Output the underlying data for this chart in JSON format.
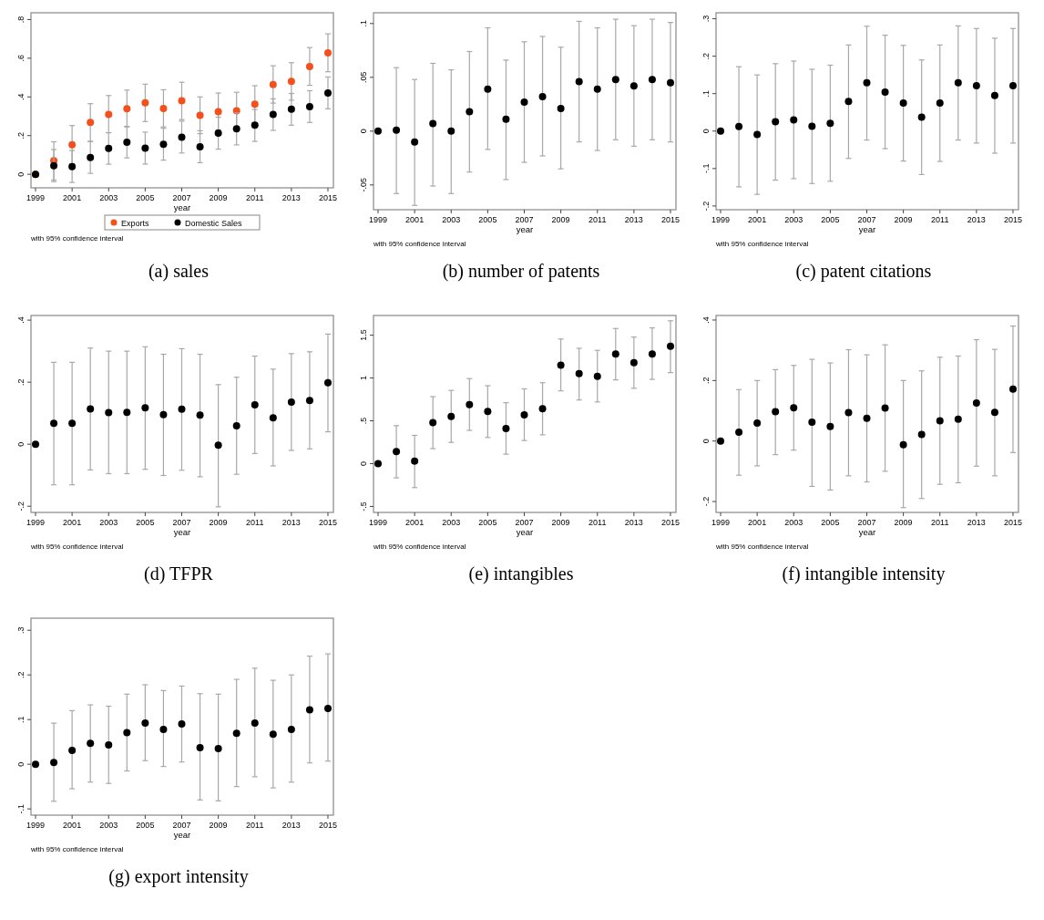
{
  "chart_data": [
    {
      "type": "scatter",
      "title": "(a) sales",
      "xlabel": "year",
      "annotations": [
        "with 95% confidence interval"
      ],
      "x": [
        1999,
        2000,
        2001,
        2002,
        2003,
        2004,
        2005,
        2006,
        2007,
        2008,
        2009,
        2010,
        2011,
        2012,
        2013,
        2014,
        2015
      ],
      "xlim": [
        1998.75,
        2015.3
      ],
      "xticks": [
        1999,
        2001,
        2003,
        2005,
        2007,
        2009,
        2011,
        2013,
        2015
      ],
      "ylim": [
        -0.07,
        0.835
      ],
      "yticks": [
        {
          "value": 0,
          "label": "0"
        },
        {
          "value": 0.2,
          "label": ".2"
        },
        {
          "value": 0.4,
          "label": ".4"
        },
        {
          "value": 0.6,
          "label": ".6"
        },
        {
          "value": 0.8,
          "label": ".8"
        }
      ],
      "marker": "circle",
      "legend": "bottom",
      "series": [
        {
          "name": "Exports",
          "color": "#f4501e",
          "values": [
            0,
            0.07,
            0.153,
            0.268,
            0.31,
            0.339,
            0.369,
            0.34,
            0.38,
            0.305,
            0.324,
            0.328,
            0.362,
            0.464,
            0.48,
            0.557,
            0.628
          ],
          "errors": [
            null,
            [
              -0.03,
              0.168
            ],
            [
              0.055,
              0.252
            ],
            [
              0.17,
              0.365
            ],
            [
              0.215,
              0.407
            ],
            [
              0.245,
              0.435
            ],
            [
              0.273,
              0.466
            ],
            [
              0.245,
              0.437
            ],
            [
              0.283,
              0.476
            ],
            [
              0.21,
              0.4
            ],
            [
              0.23,
              0.42
            ],
            [
              0.232,
              0.424
            ],
            [
              0.265,
              0.458
            ],
            [
              0.368,
              0.561
            ],
            [
              0.383,
              0.577
            ],
            [
              0.46,
              0.655
            ],
            [
              0.53,
              0.726
            ]
          ]
        },
        {
          "name": "Domestic Sales",
          "color": "#000000",
          "values": [
            0,
            0.044,
            0.04,
            0.087,
            0.134,
            0.166,
            0.135,
            0.155,
            0.192,
            0.142,
            0.213,
            0.235,
            0.254,
            0.309,
            0.336,
            0.35,
            0.42
          ],
          "errors": [
            null,
            [
              -0.038,
              0.128
            ],
            [
              -0.042,
              0.123
            ],
            [
              0.005,
              0.17
            ],
            [
              0.052,
              0.215
            ],
            [
              0.085,
              0.248
            ],
            [
              0.053,
              0.218
            ],
            [
              0.073,
              0.238
            ],
            [
              0.11,
              0.275
            ],
            [
              0.06,
              0.225
            ],
            [
              0.13,
              0.295
            ],
            [
              0.152,
              0.317
            ],
            [
              0.17,
              0.335
            ],
            [
              0.227,
              0.39
            ],
            [
              0.254,
              0.418
            ],
            [
              0.268,
              0.432
            ],
            [
              0.338,
              0.503
            ]
          ]
        }
      ]
    },
    {
      "type": "scatter",
      "title": "(b) number of patents",
      "xlabel": "year",
      "annotations": [
        "with 95% confidence interval"
      ],
      "x": [
        1999,
        2000,
        2001,
        2002,
        2003,
        2004,
        2005,
        2006,
        2007,
        2008,
        2009,
        2010,
        2011,
        2012,
        2013,
        2014,
        2015
      ],
      "xlim": [
        1998.75,
        2015.3
      ],
      "xticks": [
        1999,
        2001,
        2003,
        2005,
        2007,
        2009,
        2011,
        2013,
        2015
      ],
      "ylim": [
        -0.073,
        0.11
      ],
      "yticks": [
        {
          "value": -0.05,
          "label": "-.05"
        },
        {
          "value": 0,
          "label": "0"
        },
        {
          "value": 0.05,
          "label": ".05"
        },
        {
          "value": 0.1,
          "label": ".1"
        }
      ],
      "marker": "circle",
      "series": [
        {
          "color": "#000000",
          "values": [
            0,
            0.001,
            -0.01,
            0.007,
            0,
            0.018,
            0.039,
            0.011,
            0.027,
            0.032,
            0.021,
            0.046,
            0.039,
            0.048,
            0.042,
            0.048,
            0.045
          ],
          "errors": [
            null,
            [
              -0.058,
              0.059
            ],
            [
              -0.069,
              0.048
            ],
            [
              -0.051,
              0.063
            ],
            [
              -0.058,
              0.057
            ],
            [
              -0.038,
              0.074
            ],
            [
              -0.017,
              0.096
            ],
            [
              -0.045,
              0.066
            ],
            [
              -0.029,
              0.083
            ],
            [
              -0.023,
              0.088
            ],
            [
              -0.035,
              0.078
            ],
            [
              -0.01,
              0.102
            ],
            [
              -0.018,
              0.096
            ],
            [
              -0.008,
              0.104
            ],
            [
              -0.014,
              0.098
            ],
            [
              -0.008,
              0.104
            ],
            [
              -0.01,
              0.101
            ]
          ]
        }
      ]
    },
    {
      "type": "scatter",
      "title": "(c) patent citations",
      "xlabel": "year",
      "annotations": [
        "with 95% confidence interval"
      ],
      "x": [
        1999,
        2000,
        2001,
        2002,
        2003,
        2004,
        2005,
        2006,
        2007,
        2008,
        2009,
        2010,
        2011,
        2012,
        2013,
        2014,
        2015
      ],
      "xlim": [
        1998.75,
        2015.3
      ],
      "xticks": [
        1999,
        2001,
        2003,
        2005,
        2007,
        2009,
        2011,
        2013,
        2015
      ],
      "ylim": [
        -0.21,
        0.316
      ],
      "yticks": [
        {
          "value": -0.2,
          "label": "-.2"
        },
        {
          "value": -0.1,
          "label": "-.1"
        },
        {
          "value": 0,
          "label": "0"
        },
        {
          "value": 0.1,
          "label": ".1"
        },
        {
          "value": 0.2,
          "label": ".2"
        },
        {
          "value": 0.3,
          "label": ".3"
        }
      ],
      "marker": "circle",
      "series": [
        {
          "color": "#000000",
          "values": [
            0,
            0.012,
            -0.009,
            0.025,
            0.03,
            0.013,
            0.021,
            0.079,
            0.129,
            0.104,
            0.075,
            0.037,
            0.075,
            0.129,
            0.121,
            0.095,
            0.121
          ],
          "errors": [
            null,
            [
              -0.149,
              0.172
            ],
            [
              -0.169,
              0.15
            ],
            [
              -0.131,
              0.18
            ],
            [
              -0.127,
              0.187
            ],
            [
              -0.14,
              0.165
            ],
            [
              -0.134,
              0.176
            ],
            [
              -0.073,
              0.23
            ],
            [
              -0.024,
              0.28
            ],
            [
              -0.047,
              0.256
            ],
            [
              -0.08,
              0.229
            ],
            [
              -0.116,
              0.19
            ],
            [
              -0.081,
              0.23
            ],
            [
              -0.024,
              0.281
            ],
            [
              -0.032,
              0.274
            ],
            [
              -0.059,
              0.248
            ],
            [
              -0.032,
              0.274
            ]
          ]
        }
      ]
    },
    {
      "type": "scatter",
      "title": "(d) TFPR",
      "xlabel": "year",
      "annotations": [
        "with 95% confidence interval"
      ],
      "x": [
        1999,
        2000,
        2001,
        2002,
        2003,
        2004,
        2005,
        2006,
        2007,
        2008,
        2009,
        2010,
        2011,
        2012,
        2013,
        2014,
        2015
      ],
      "xlim": [
        1998.75,
        2015.3
      ],
      "xticks": [
        1999,
        2001,
        2003,
        2005,
        2007,
        2009,
        2011,
        2013,
        2015
      ],
      "ylim": [
        -0.22,
        0.415
      ],
      "yticks": [
        {
          "value": -0.2,
          "label": "-.2"
        },
        {
          "value": 0,
          "label": "0"
        },
        {
          "value": 0.2,
          "label": ".2"
        },
        {
          "value": 0.4,
          "label": ".4"
        }
      ],
      "marker": "circle",
      "series": [
        {
          "color": "#000000",
          "values": [
            0,
            0.067,
            0.067,
            0.114,
            0.102,
            0.103,
            0.117,
            0.095,
            0.113,
            0.094,
            -0.003,
            0.059,
            0.127,
            0.085,
            0.136,
            0.141,
            0.198
          ],
          "errors": [
            null,
            [
              -0.131,
              0.264
            ],
            [
              -0.131,
              0.264
            ],
            [
              -0.083,
              0.31
            ],
            [
              -0.095,
              0.3
            ],
            [
              -0.095,
              0.3
            ],
            [
              -0.081,
              0.314
            ],
            [
              -0.101,
              0.29
            ],
            [
              -0.084,
              0.308
            ],
            [
              -0.105,
              0.29
            ],
            [
              -0.202,
              0.192
            ],
            [
              -0.097,
              0.216
            ],
            [
              -0.03,
              0.284
            ],
            [
              -0.07,
              0.242
            ],
            [
              -0.02,
              0.292
            ],
            [
              -0.015,
              0.298
            ],
            [
              0.04,
              0.355
            ]
          ]
        }
      ]
    },
    {
      "type": "scatter",
      "title": "(e) intangibles",
      "xlabel": "year",
      "annotations": [
        "with 95% confidence interval"
      ],
      "x": [
        1999,
        2000,
        2001,
        2002,
        2003,
        2004,
        2005,
        2006,
        2007,
        2008,
        2009,
        2010,
        2011,
        2012,
        2013,
        2014,
        2015
      ],
      "xlim": [
        1998.75,
        2015.3
      ],
      "xticks": [
        1999,
        2001,
        2003,
        2005,
        2007,
        2009,
        2011,
        2013,
        2015
      ],
      "ylim": [
        -0.57,
        1.73
      ],
      "yticks": [
        {
          "value": -0.5,
          "label": "-.5"
        },
        {
          "value": 0,
          "label": "0"
        },
        {
          "value": 0.5,
          "label": ".5"
        },
        {
          "value": 1,
          "label": "1"
        },
        {
          "value": 1.5,
          "label": "1.5"
        }
      ],
      "marker": "circle",
      "series": [
        {
          "color": "#000000",
          "values": [
            0,
            0.14,
            0.03,
            0.48,
            0.55,
            0.69,
            0.61,
            0.41,
            0.57,
            0.64,
            1.15,
            1.05,
            1.02,
            1.28,
            1.18,
            1.28,
            1.37
          ],
          "errors": [
            null,
            [
              -0.166,
              0.443
            ],
            [
              -0.28,
              0.33
            ],
            [
              0.175,
              0.782
            ],
            [
              0.248,
              0.855
            ],
            [
              0.388,
              0.993
            ],
            [
              0.305,
              0.91
            ],
            [
              0.11,
              0.712
            ],
            [
              0.27,
              0.873
            ],
            [
              0.336,
              0.945
            ],
            [
              0.85,
              1.455
            ],
            [
              0.743,
              1.347
            ],
            [
              0.72,
              1.323
            ],
            [
              0.978,
              1.578
            ],
            [
              0.88,
              1.478
            ],
            [
              0.984,
              1.585
            ],
            [
              1.063,
              1.668
            ]
          ]
        }
      ]
    },
    {
      "type": "scatter",
      "title": "(f) intangible intensity",
      "xlabel": "year",
      "annotations": [
        "with 95% confidence interval"
      ],
      "x": [
        1999,
        2000,
        2001,
        2002,
        2003,
        2004,
        2005,
        2006,
        2007,
        2008,
        2009,
        2010,
        2011,
        2012,
        2013,
        2014,
        2015
      ],
      "xlim": [
        1998.75,
        2015.3
      ],
      "xticks": [
        1999,
        2001,
        2003,
        2005,
        2007,
        2009,
        2011,
        2013,
        2015
      ],
      "ylim": [
        -0.236,
        0.415
      ],
      "yticks": [
        {
          "value": -0.2,
          "label": "-.2"
        },
        {
          "value": 0,
          "label": "0"
        },
        {
          "value": 0.2,
          "label": ".2"
        },
        {
          "value": 0.4,
          "label": ".4"
        }
      ],
      "marker": "circle",
      "series": [
        {
          "color": "#000000",
          "values": [
            0,
            0.029,
            0.059,
            0.097,
            0.11,
            0.062,
            0.048,
            0.094,
            0.075,
            0.109,
            -0.012,
            0.022,
            0.067,
            0.072,
            0.126,
            0.095,
            0.172
          ],
          "errors": [
            null,
            [
              -0.113,
              0.17
            ],
            [
              -0.082,
              0.2
            ],
            [
              -0.045,
              0.236
            ],
            [
              -0.03,
              0.25
            ],
            [
              -0.15,
              0.27
            ],
            [
              -0.162,
              0.258
            ],
            [
              -0.115,
              0.302
            ],
            [
              -0.135,
              0.285
            ],
            [
              -0.1,
              0.318
            ],
            [
              -0.22,
              0.2
            ],
            [
              -0.19,
              0.232
            ],
            [
              -0.143,
              0.277
            ],
            [
              -0.138,
              0.281
            ],
            [
              -0.083,
              0.335
            ],
            [
              -0.115,
              0.303
            ],
            [
              -0.038,
              0.38
            ]
          ]
        }
      ]
    },
    {
      "type": "scatter",
      "title": "(g) export intensity",
      "xlabel": "year",
      "annotations": [
        "with 95% confidence interval"
      ],
      "x": [
        1999,
        2000,
        2001,
        2002,
        2003,
        2004,
        2005,
        2006,
        2007,
        2008,
        2009,
        2010,
        2011,
        2012,
        2013,
        2014,
        2015
      ],
      "xlim": [
        1998.75,
        2015.3
      ],
      "xticks": [
        1999,
        2001,
        2003,
        2005,
        2007,
        2009,
        2011,
        2013,
        2015
      ],
      "ylim": [
        -0.114,
        0.327
      ],
      "yticks": [
        {
          "value": -0.1,
          "label": "-.1"
        },
        {
          "value": 0,
          "label": "0"
        },
        {
          "value": 0.1,
          "label": ".1"
        },
        {
          "value": 0.2,
          "label": ".2"
        },
        {
          "value": 0.3,
          "label": ".3"
        }
      ],
      "marker": "circle",
      "series": [
        {
          "color": "#000000",
          "values": [
            0,
            0.004,
            0.031,
            0.047,
            0.043,
            0.071,
            0.092,
            0.078,
            0.09,
            0.037,
            0.035,
            0.069,
            0.092,
            0.067,
            0.078,
            0.122,
            0.125
          ],
          "errors": [
            null,
            [
              -0.083,
              0.092
            ],
            [
              -0.055,
              0.12
            ],
            [
              -0.04,
              0.133
            ],
            [
              -0.043,
              0.13
            ],
            [
              -0.015,
              0.157
            ],
            [
              0.008,
              0.178
            ],
            [
              -0.005,
              0.165
            ],
            [
              0.005,
              0.175
            ],
            [
              -0.08,
              0.158
            ],
            [
              -0.082,
              0.157
            ],
            [
              -0.05,
              0.19
            ],
            [
              -0.028,
              0.215
            ],
            [
              -0.053,
              0.188
            ],
            [
              -0.04,
              0.2
            ],
            [
              0.003,
              0.242
            ],
            [
              0.007,
              0.247
            ]
          ]
        }
      ]
    }
  ]
}
